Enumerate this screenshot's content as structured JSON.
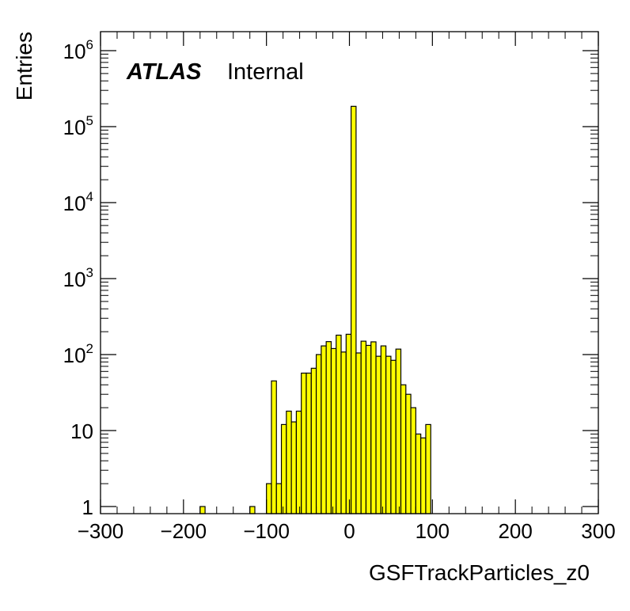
{
  "chart_data": {
    "type": "bar",
    "style": "histogram",
    "xlabel": "GSFTrackParticles_z0",
    "ylabel": "Entries",
    "log_y": true,
    "xlim": [
      -300,
      300
    ],
    "ylim": [
      0.8,
      2000000
    ],
    "x_ticks": [
      {
        "value": -300,
        "label": "−300"
      },
      {
        "value": -200,
        "label": "−200"
      },
      {
        "value": -100,
        "label": "−100"
      },
      {
        "value": 0,
        "label": "0"
      },
      {
        "value": 100,
        "label": "100"
      },
      {
        "value": 200,
        "label": "200"
      },
      {
        "value": 300,
        "label": "300"
      }
    ],
    "y_ticks": [
      {
        "value": 1,
        "base": "1",
        "exp": ""
      },
      {
        "value": 10,
        "base": "10",
        "exp": ""
      },
      {
        "value": 100,
        "base": "10",
        "exp": "2"
      },
      {
        "value": 1000,
        "base": "10",
        "exp": "3"
      },
      {
        "value": 10000,
        "base": "10",
        "exp": "4"
      },
      {
        "value": 100000,
        "base": "10",
        "exp": "5"
      },
      {
        "value": 1000000,
        "base": "10",
        "exp": "6"
      }
    ],
    "bins": {
      "x_start": [
        -180,
        -120,
        -100,
        -94,
        -88,
        -82,
        -76,
        -70,
        -64,
        -58,
        -52,
        -46,
        -40,
        -34,
        -28,
        -22,
        -16,
        -10,
        -4,
        2,
        8,
        14,
        20,
        26,
        32,
        38,
        44,
        50,
        56,
        62,
        68,
        74,
        80,
        86,
        92
      ],
      "width": 6,
      "values": [
        1,
        1,
        2,
        45,
        2,
        12,
        18,
        13,
        18,
        57,
        57,
        66,
        100,
        130,
        148,
        120,
        180,
        108,
        185,
        185000,
        105,
        150,
        132,
        147,
        95,
        130,
        95,
        84,
        118,
        40,
        30,
        20,
        9,
        8,
        12
      ]
    },
    "fill_color": "#ffff00",
    "line_color": "#000000",
    "annotations": {
      "atlas": "ATLAS",
      "status": "Internal"
    },
    "grid": false,
    "legend": "none"
  }
}
